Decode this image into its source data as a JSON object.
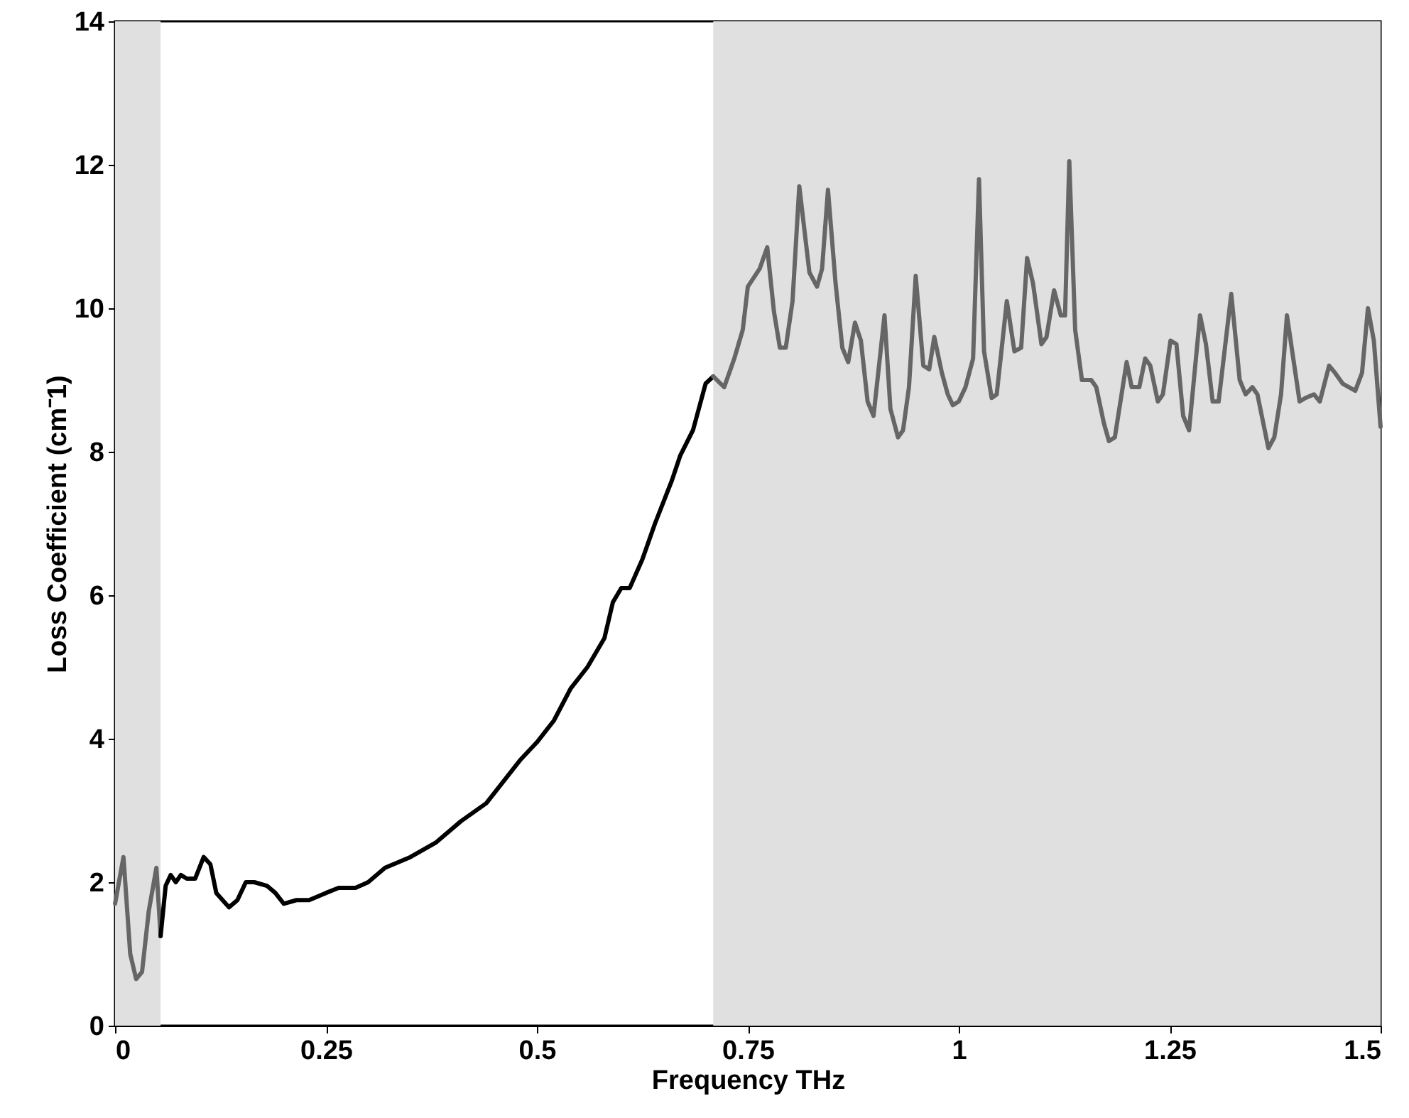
{
  "chart_data": {
    "type": "line",
    "xlabel": "Frequency THz",
    "ylabel": "Loss Coefficient (cm⁻1)",
    "xlim": [
      0,
      1.5
    ],
    "xticks": [
      0,
      0.25,
      0.5,
      0.75,
      1,
      1.25,
      1.5
    ],
    "ylim": [
      0,
      14
    ],
    "yticks": [
      0,
      2,
      4,
      6,
      8,
      10,
      12,
      14
    ],
    "grid": false,
    "line_style": "solid",
    "bands": [
      {
        "axis": "x",
        "from": 0,
        "to": 0.054,
        "color": "#e0e0e0"
      },
      {
        "axis": "x",
        "from": 0.709,
        "to": 1.5,
        "color": "#e0e0e0"
      }
    ],
    "series": [
      {
        "color": "#666666",
        "x": [
          0,
          0.01,
          0.018,
          0.025,
          0.032,
          0.04,
          0.049,
          0.054
        ],
        "values": [
          1.7,
          2.35,
          1.0,
          0.65,
          0.75,
          1.6,
          2.2,
          1.25
        ]
      },
      {
        "color": "#000000",
        "x": [
          0.054,
          0.06,
          0.066,
          0.072,
          0.078,
          0.085,
          0.095,
          0.105,
          0.113,
          0.12,
          0.135,
          0.145,
          0.155,
          0.165,
          0.18,
          0.19,
          0.2,
          0.215,
          0.23,
          0.25,
          0.265,
          0.285,
          0.3,
          0.32,
          0.35,
          0.38,
          0.41,
          0.44,
          0.46,
          0.48,
          0.5,
          0.52,
          0.54,
          0.56,
          0.58,
          0.59,
          0.6,
          0.61,
          0.625,
          0.64,
          0.66,
          0.67,
          0.685,
          0.7,
          0.709
        ],
        "values": [
          1.25,
          1.95,
          2.1,
          2.0,
          2.1,
          2.05,
          2.05,
          2.35,
          2.25,
          1.85,
          1.65,
          1.75,
          2.0,
          2.0,
          1.95,
          1.85,
          1.7,
          1.75,
          1.75,
          1.85,
          1.92,
          1.92,
          2.0,
          2.2,
          2.35,
          2.55,
          2.85,
          3.1,
          3.4,
          3.7,
          3.95,
          4.25,
          4.7,
          5.0,
          5.4,
          5.9,
          6.1,
          6.1,
          6.5,
          7.0,
          7.6,
          7.95,
          8.3,
          8.95,
          9.05
        ]
      },
      {
        "color": "#666666",
        "x": [
          0.709,
          0.722,
          0.734,
          0.744,
          0.75,
          0.764,
          0.773,
          0.781,
          0.788,
          0.795,
          0.803,
          0.811,
          0.823,
          0.832,
          0.838,
          0.845,
          0.854,
          0.862,
          0.869,
          0.877,
          0.884,
          0.892,
          0.899,
          0.912,
          0.919,
          0.928,
          0.934,
          0.941,
          0.949,
          0.958,
          0.965,
          0.971,
          0.98,
          0.987,
          0.993,
          1.0,
          1.008,
          1.017,
          1.024,
          1.03,
          1.039,
          1.045,
          1.057,
          1.066,
          1.074,
          1.081,
          1.088,
          1.098,
          1.104,
          1.113,
          1.121,
          1.126,
          1.131,
          1.138,
          1.146,
          1.157,
          1.163,
          1.172,
          1.178,
          1.185,
          1.199,
          1.205,
          1.214,
          1.221,
          1.227,
          1.236,
          1.242,
          1.251,
          1.258,
          1.266,
          1.273,
          1.286,
          1.293,
          1.301,
          1.308,
          1.323,
          1.333,
          1.34,
          1.348,
          1.354,
          1.367,
          1.374,
          1.382,
          1.389,
          1.399,
          1.404,
          1.411,
          1.421,
          1.428,
          1.439,
          1.446,
          1.455,
          1.47,
          1.478,
          1.485,
          1.492,
          1.5
        ],
        "values": [
          9.05,
          8.9,
          9.3,
          9.7,
          10.3,
          10.55,
          10.85,
          9.95,
          9.45,
          9.45,
          10.1,
          11.7,
          10.5,
          10.3,
          10.55,
          11.65,
          10.35,
          9.45,
          9.25,
          9.8,
          9.55,
          8.7,
          8.5,
          9.9,
          8.6,
          8.2,
          8.3,
          8.9,
          10.45,
          9.2,
          9.15,
          9.6,
          9.1,
          8.8,
          8.65,
          8.7,
          8.9,
          9.3,
          11.8,
          9.4,
          8.75,
          8.8,
          10.1,
          9.4,
          9.45,
          10.7,
          10.35,
          9.5,
          9.6,
          10.25,
          9.9,
          9.9,
          12.05,
          9.7,
          9.0,
          9.0,
          8.9,
          8.4,
          8.15,
          8.2,
          9.25,
          8.9,
          8.9,
          9.3,
          9.2,
          8.7,
          8.8,
          9.55,
          9.5,
          8.5,
          8.3,
          9.9,
          9.5,
          8.7,
          8.7,
          10.2,
          9.0,
          8.8,
          8.9,
          8.8,
          8.05,
          8.2,
          8.8,
          9.9,
          9.1,
          8.7,
          8.75,
          8.8,
          8.7,
          9.2,
          9.1,
          8.95,
          8.85,
          9.1,
          10.0,
          9.55,
          8.35
        ]
      }
    ]
  }
}
